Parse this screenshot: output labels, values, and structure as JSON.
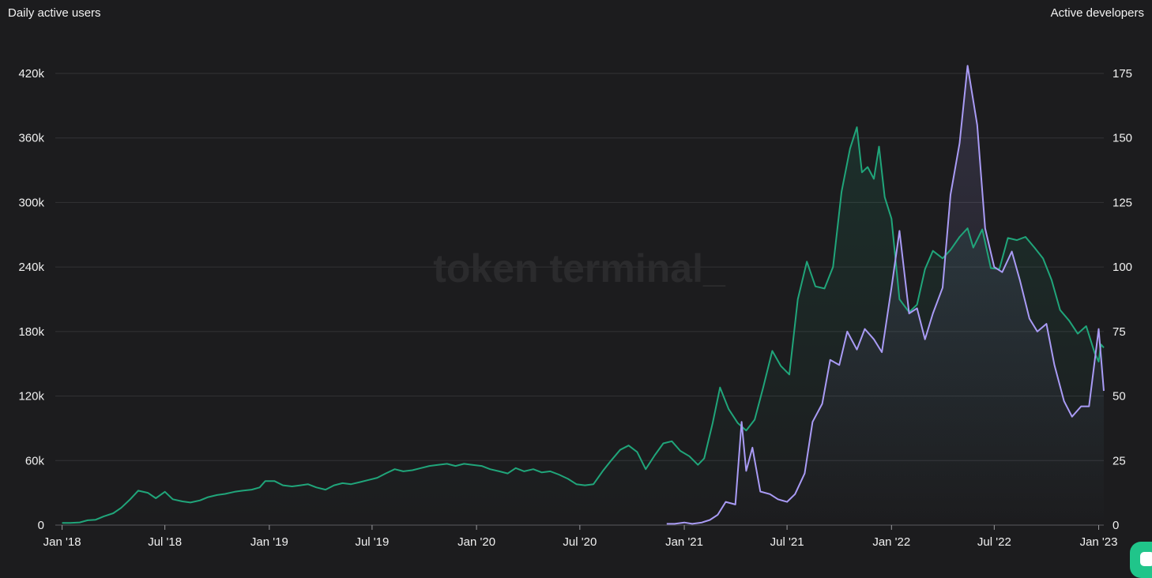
{
  "chart_data": {
    "type": "line",
    "watermark": "token terminal_",
    "left_axis": {
      "label": "Daily active users",
      "ticks": [
        "0",
        "60k",
        "120k",
        "180k",
        "240k",
        "300k",
        "360k",
        "420k"
      ],
      "tick_values": [
        0,
        60000,
        120000,
        180000,
        240000,
        300000,
        360000,
        420000
      ],
      "range": [
        0,
        420000
      ]
    },
    "right_axis": {
      "label": "Active developers",
      "ticks": [
        "0",
        "25",
        "50",
        "75",
        "100",
        "125",
        "150",
        "175"
      ],
      "tick_values": [
        0,
        25,
        50,
        75,
        100,
        125,
        150,
        175
      ],
      "range": [
        0,
        175
      ]
    },
    "x_axis": {
      "ticks": [
        "Jan '18",
        "Jul '18",
        "Jan '19",
        "Jul '19",
        "Jan '20",
        "Jul '20",
        "Jan '21",
        "Jul '21",
        "Jan '22",
        "Jul '22",
        "Jan '23"
      ],
      "tick_dates": [
        "2018-01-01",
        "2018-07-01",
        "2019-01-01",
        "2019-07-01",
        "2020-01-01",
        "2020-07-01",
        "2021-01-01",
        "2021-07-01",
        "2022-01-01",
        "2022-07-01",
        "2023-01-01"
      ],
      "range": [
        "2017-12-20",
        "2023-01-10"
      ]
    },
    "grid": true,
    "series": [
      {
        "axis": "left",
        "color": "#20a57a",
        "points": [
          [
            "2018-01-01",
            2000
          ],
          [
            "2018-01-15",
            2000
          ],
          [
            "2018-02-01",
            2500
          ],
          [
            "2018-02-15",
            4500
          ],
          [
            "2018-03-01",
            5000
          ],
          [
            "2018-03-15",
            8000
          ],
          [
            "2018-04-01",
            11000
          ],
          [
            "2018-04-15",
            16000
          ],
          [
            "2018-05-01",
            24000
          ],
          [
            "2018-05-15",
            32000
          ],
          [
            "2018-06-01",
            30000
          ],
          [
            "2018-06-15",
            25000
          ],
          [
            "2018-07-01",
            31000
          ],
          [
            "2018-07-15",
            24000
          ],
          [
            "2018-08-01",
            22000
          ],
          [
            "2018-08-15",
            21000
          ],
          [
            "2018-09-01",
            23000
          ],
          [
            "2018-09-15",
            26000
          ],
          [
            "2018-10-01",
            28000
          ],
          [
            "2018-10-15",
            29000
          ],
          [
            "2018-11-01",
            31000
          ],
          [
            "2018-11-15",
            32000
          ],
          [
            "2018-12-01",
            33000
          ],
          [
            "2018-12-15",
            35000
          ],
          [
            "2018-12-25",
            41000
          ],
          [
            "2019-01-10",
            41000
          ],
          [
            "2019-01-25",
            37000
          ],
          [
            "2019-02-10",
            36000
          ],
          [
            "2019-02-25",
            37000
          ],
          [
            "2019-03-10",
            38000
          ],
          [
            "2019-03-25",
            35000
          ],
          [
            "2019-04-10",
            33000
          ],
          [
            "2019-04-25",
            37000
          ],
          [
            "2019-05-10",
            39000
          ],
          [
            "2019-05-25",
            38000
          ],
          [
            "2019-06-10",
            40000
          ],
          [
            "2019-06-25",
            42000
          ],
          [
            "2019-07-10",
            44000
          ],
          [
            "2019-07-25",
            48000
          ],
          [
            "2019-08-10",
            52000
          ],
          [
            "2019-08-25",
            50000
          ],
          [
            "2019-09-10",
            51000
          ],
          [
            "2019-09-25",
            53000
          ],
          [
            "2019-10-10",
            55000
          ],
          [
            "2019-10-25",
            56000
          ],
          [
            "2019-11-10",
            57000
          ],
          [
            "2019-11-25",
            55000
          ],
          [
            "2019-12-10",
            57000
          ],
          [
            "2019-12-25",
            56000
          ],
          [
            "2020-01-10",
            55000
          ],
          [
            "2020-01-25",
            52000
          ],
          [
            "2020-02-10",
            50000
          ],
          [
            "2020-02-25",
            48000
          ],
          [
            "2020-03-10",
            53000
          ],
          [
            "2020-03-25",
            50000
          ],
          [
            "2020-04-10",
            52000
          ],
          [
            "2020-04-25",
            49000
          ],
          [
            "2020-05-10",
            50000
          ],
          [
            "2020-05-25",
            47000
          ],
          [
            "2020-06-10",
            43000
          ],
          [
            "2020-06-25",
            38000
          ],
          [
            "2020-07-10",
            37000
          ],
          [
            "2020-07-25",
            38000
          ],
          [
            "2020-08-10",
            50000
          ],
          [
            "2020-08-25",
            60000
          ],
          [
            "2020-09-10",
            70000
          ],
          [
            "2020-09-25",
            74000
          ],
          [
            "2020-10-10",
            68000
          ],
          [
            "2020-10-25",
            52000
          ],
          [
            "2020-11-10",
            65000
          ],
          [
            "2020-11-25",
            76000
          ],
          [
            "2020-12-10",
            78000
          ],
          [
            "2020-12-25",
            69000
          ],
          [
            "2021-01-10",
            64000
          ],
          [
            "2021-01-25",
            56000
          ],
          [
            "2021-02-05",
            62000
          ],
          [
            "2021-02-20",
            95000
          ],
          [
            "2021-03-05",
            128000
          ],
          [
            "2021-03-20",
            108000
          ],
          [
            "2021-04-05",
            95000
          ],
          [
            "2021-04-20",
            88000
          ],
          [
            "2021-05-05",
            98000
          ],
          [
            "2021-05-20",
            128000
          ],
          [
            "2021-06-05",
            162000
          ],
          [
            "2021-06-20",
            148000
          ],
          [
            "2021-07-05",
            140000
          ],
          [
            "2021-07-20",
            210000
          ],
          [
            "2021-08-05",
            245000
          ],
          [
            "2021-08-20",
            222000
          ],
          [
            "2021-09-05",
            220000
          ],
          [
            "2021-09-20",
            240000
          ],
          [
            "2021-10-05",
            310000
          ],
          [
            "2021-10-20",
            350000
          ],
          [
            "2021-11-01",
            370000
          ],
          [
            "2021-11-10",
            328000
          ],
          [
            "2021-11-20",
            333000
          ],
          [
            "2021-12-01",
            322000
          ],
          [
            "2021-12-10",
            352000
          ],
          [
            "2021-12-20",
            305000
          ],
          [
            "2022-01-01",
            285000
          ],
          [
            "2022-01-15",
            210000
          ],
          [
            "2022-02-01",
            198000
          ],
          [
            "2022-02-15",
            205000
          ],
          [
            "2022-03-01",
            238000
          ],
          [
            "2022-03-15",
            255000
          ],
          [
            "2022-04-01",
            248000
          ],
          [
            "2022-04-15",
            256000
          ],
          [
            "2022-05-01",
            268000
          ],
          [
            "2022-05-15",
            276000
          ],
          [
            "2022-05-25",
            258000
          ],
          [
            "2022-06-10",
            275000
          ],
          [
            "2022-06-25",
            239000
          ],
          [
            "2022-07-10",
            238000
          ],
          [
            "2022-07-25",
            267000
          ],
          [
            "2022-08-10",
            265000
          ],
          [
            "2022-08-25",
            268000
          ],
          [
            "2022-09-10",
            258000
          ],
          [
            "2022-09-25",
            248000
          ],
          [
            "2022-10-10",
            228000
          ],
          [
            "2022-10-25",
            200000
          ],
          [
            "2022-11-10",
            190000
          ],
          [
            "2022-11-25",
            178000
          ],
          [
            "2022-12-10",
            185000
          ],
          [
            "2022-12-25",
            160000
          ],
          [
            "2023-01-01",
            152000
          ],
          [
            "2023-01-05",
            168000
          ],
          [
            "2023-01-10",
            165000
          ]
        ]
      },
      {
        "axis": "right",
        "color": "#a99bf5",
        "points": [
          [
            "2020-12-01",
            0.5
          ],
          [
            "2020-12-15",
            0.5
          ],
          [
            "2021-01-01",
            1
          ],
          [
            "2021-01-15",
            0.5
          ],
          [
            "2021-02-01",
            1
          ],
          [
            "2021-02-15",
            2
          ],
          [
            "2021-03-01",
            4
          ],
          [
            "2021-03-15",
            9
          ],
          [
            "2021-04-01",
            8
          ],
          [
            "2021-04-12",
            40
          ],
          [
            "2021-04-20",
            21
          ],
          [
            "2021-05-01",
            30
          ],
          [
            "2021-05-15",
            13
          ],
          [
            "2021-06-01",
            12
          ],
          [
            "2021-06-15",
            10
          ],
          [
            "2021-07-01",
            9
          ],
          [
            "2021-07-15",
            12
          ],
          [
            "2021-08-01",
            20
          ],
          [
            "2021-08-15",
            40
          ],
          [
            "2021-09-01",
            47
          ],
          [
            "2021-09-15",
            64
          ],
          [
            "2021-10-01",
            62
          ],
          [
            "2021-10-15",
            75
          ],
          [
            "2021-11-01",
            68
          ],
          [
            "2021-11-15",
            76
          ],
          [
            "2021-12-01",
            72
          ],
          [
            "2021-12-15",
            67
          ],
          [
            "2022-01-01",
            92
          ],
          [
            "2022-01-15",
            114
          ],
          [
            "2022-02-01",
            82
          ],
          [
            "2022-02-15",
            84
          ],
          [
            "2022-03-01",
            72
          ],
          [
            "2022-03-15",
            82
          ],
          [
            "2022-04-01",
            92
          ],
          [
            "2022-04-15",
            128
          ],
          [
            "2022-05-01",
            148
          ],
          [
            "2022-05-15",
            178
          ],
          [
            "2022-06-01",
            155
          ],
          [
            "2022-06-15",
            115
          ],
          [
            "2022-07-01",
            100
          ],
          [
            "2022-07-15",
            98
          ],
          [
            "2022-08-01",
            106
          ],
          [
            "2022-08-15",
            95
          ],
          [
            "2022-09-01",
            80
          ],
          [
            "2022-09-15",
            75
          ],
          [
            "2022-10-01",
            78
          ],
          [
            "2022-10-15",
            62
          ],
          [
            "2022-11-01",
            48
          ],
          [
            "2022-11-15",
            42
          ],
          [
            "2022-12-01",
            46
          ],
          [
            "2022-12-15",
            46
          ],
          [
            "2023-01-01",
            76
          ],
          [
            "2023-01-10",
            52
          ]
        ]
      }
    ]
  }
}
